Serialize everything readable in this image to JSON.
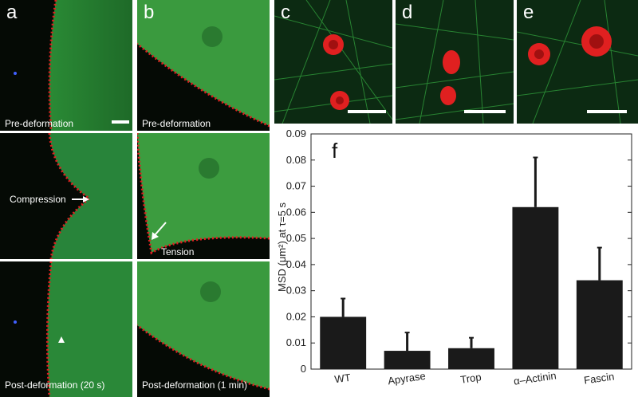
{
  "panels": {
    "a": {
      "label": "a",
      "rows": [
        "Pre-deformation",
        "Compression",
        "Post-deformation (20 s)"
      ]
    },
    "b": {
      "label": "b",
      "rows": [
        "Pre-deformation",
        "Tension",
        "Post-deformation (1 min)"
      ]
    },
    "c": {
      "label": "c"
    },
    "d": {
      "label": "d"
    },
    "e": {
      "label": "e"
    },
    "f": {
      "label": "f"
    }
  },
  "colors": {
    "actin": "#3ab54a",
    "membrane": "#e02020",
    "bar": "#1a1a1a"
  },
  "chart_data": {
    "type": "bar",
    "categories": [
      "WT",
      "Apyrase",
      "Trop",
      "α–Actinin",
      "Fascin"
    ],
    "values": [
      0.02,
      0.007,
      0.008,
      0.062,
      0.034
    ],
    "errors": [
      0.007,
      0.007,
      0.004,
      0.019,
      0.0125
    ],
    "ylabel": "MSD (μm²) at τ=5 s",
    "ylim": [
      0,
      0.09
    ],
    "yticks": [
      "0",
      "0.01",
      "0.02",
      "0.03",
      "0.04",
      "0.05",
      "0.06",
      "0.07",
      "0.08",
      "0.09"
    ],
    "grid": false
  }
}
